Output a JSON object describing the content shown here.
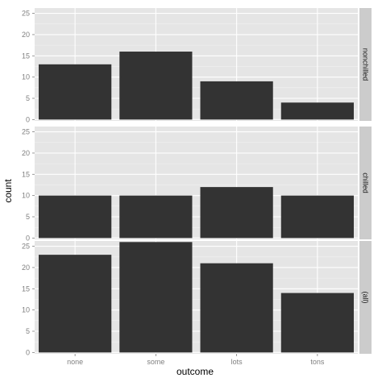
{
  "chart_data": {
    "type": "bar",
    "facet": "rows",
    "xlabel": "outcome",
    "ylabel": "count",
    "categories": [
      "none",
      "some",
      "lots",
      "tons"
    ],
    "ylim": [
      0,
      25
    ],
    "yticks": [
      0,
      5,
      10,
      15,
      20,
      25
    ],
    "grid": true,
    "colors": {
      "bar": "#333333",
      "panel_bg": "#e5e5e5",
      "grid_major": "#ffffff",
      "grid_minor": "#f2f2f2",
      "strip_bg": "#cccccc",
      "tick_text": "#7f7f7f"
    },
    "panels": [
      {
        "strip": "nonchilled",
        "values": [
          13,
          16,
          9,
          4
        ]
      },
      {
        "strip": "chilled",
        "values": [
          10,
          10,
          12,
          10
        ]
      },
      {
        "strip": "(all)",
        "values": [
          23,
          26,
          21,
          14
        ]
      }
    ]
  }
}
